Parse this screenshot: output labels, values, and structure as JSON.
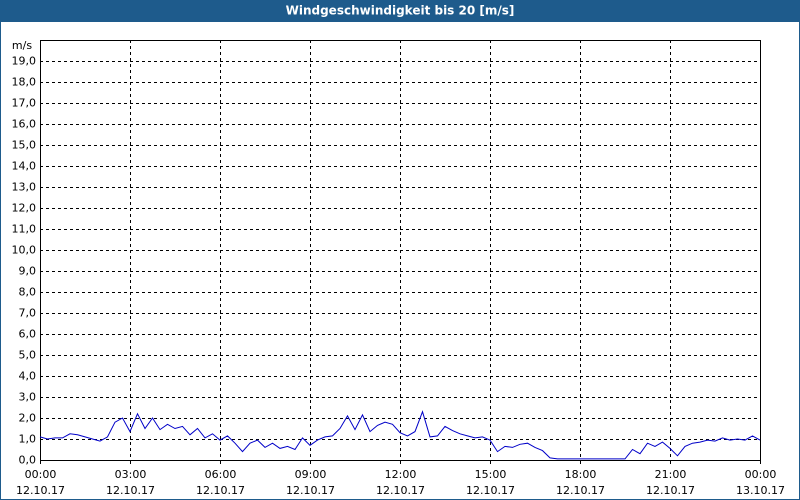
{
  "chart_data": {
    "type": "line",
    "title": "Windgeschwindigkeit bis 20 [m/s]",
    "y_label": "m/s",
    "x": [
      0,
      0.25,
      0.5,
      0.75,
      1,
      1.25,
      1.5,
      1.75,
      2,
      2.25,
      2.5,
      2.75,
      3,
      3.25,
      3.5,
      3.75,
      4,
      4.25,
      4.5,
      4.75,
      5,
      5.25,
      5.5,
      5.75,
      6,
      6.25,
      6.5,
      6.75,
      7,
      7.25,
      7.5,
      7.75,
      8,
      8.25,
      8.5,
      8.75,
      9,
      9.25,
      9.5,
      9.75,
      10,
      10.25,
      10.5,
      10.75,
      11,
      11.25,
      11.5,
      11.75,
      12,
      12.25,
      12.5,
      12.75,
      13,
      13.25,
      13.5,
      13.75,
      14,
      14.25,
      14.5,
      14.75,
      15,
      15.25,
      15.5,
      15.75,
      16,
      16.25,
      16.5,
      16.75,
      17,
      17.25,
      17.5,
      17.75,
      18,
      18.25,
      18.5,
      18.75,
      19,
      19.25,
      19.5,
      19.75,
      20,
      20.25,
      20.5,
      20.75,
      21,
      21.25,
      21.5,
      21.75,
      22,
      22.25,
      22.5,
      22.75,
      23,
      23.25,
      23.5,
      23.75,
      24
    ],
    "series": [
      {
        "name": "Windgeschwindigkeit",
        "color": "#0000c8",
        "values": [
          1.1,
          1.0,
          1.05,
          1.05,
          1.25,
          1.2,
          1.1,
          1.0,
          0.9,
          1.1,
          1.8,
          2.0,
          1.35,
          2.2,
          1.5,
          2.0,
          1.45,
          1.7,
          1.5,
          1.6,
          1.2,
          1.5,
          1.05,
          1.25,
          0.95,
          1.15,
          0.8,
          0.4,
          0.8,
          0.95,
          0.6,
          0.8,
          0.55,
          0.65,
          0.5,
          1.05,
          0.7,
          0.95,
          1.1,
          1.15,
          1.5,
          2.1,
          1.45,
          2.15,
          1.35,
          1.65,
          1.8,
          1.7,
          1.3,
          1.15,
          1.35,
          2.3,
          1.1,
          1.15,
          1.6,
          1.4,
          1.25,
          1.15,
          1.05,
          1.1,
          0.95,
          0.4,
          0.65,
          0.6,
          0.75,
          0.8,
          0.6,
          0.45,
          0.1,
          0.05,
          0.05,
          0.05,
          0.05,
          0.05,
          0.05,
          0.05,
          0.05,
          0.05,
          0.05,
          0.5,
          0.3,
          0.8,
          0.65,
          0.85,
          0.55,
          0.2,
          0.65,
          0.8,
          0.85,
          0.95,
          0.9,
          1.05,
          0.95,
          1.0,
          0.95,
          1.15,
          0.95
        ]
      }
    ],
    "xlim": [
      0,
      24
    ],
    "xticks": [
      {
        "value": 0,
        "label": "00:00"
      },
      {
        "value": 3,
        "label": "03:00"
      },
      {
        "value": 6,
        "label": "06:00"
      },
      {
        "value": 9,
        "label": "09:00"
      },
      {
        "value": 12,
        "label": "12:00"
      },
      {
        "value": 15,
        "label": "15:00"
      },
      {
        "value": 18,
        "label": "18:00"
      },
      {
        "value": 21,
        "label": "21:00"
      },
      {
        "value": 24,
        "label": "00:00"
      }
    ],
    "xtick_dates": [
      "12.10.17",
      "12.10.17",
      "12.10.17",
      "12.10.17",
      "12.10.17",
      "12.10.17",
      "12.10.17",
      "12.10.17",
      "13.10.17"
    ],
    "ylim": [
      0,
      20
    ],
    "yticks": [
      {
        "value": 0,
        "label": "0,0"
      },
      {
        "value": 1,
        "label": "1,0"
      },
      {
        "value": 2,
        "label": "2,0"
      },
      {
        "value": 3,
        "label": "3,0"
      },
      {
        "value": 4,
        "label": "4,0"
      },
      {
        "value": 5,
        "label": "5,0"
      },
      {
        "value": 6,
        "label": "6,0"
      },
      {
        "value": 7,
        "label": "7,0"
      },
      {
        "value": 8,
        "label": "8,0"
      },
      {
        "value": 9,
        "label": "9,0"
      },
      {
        "value": 10,
        "label": "10,0"
      },
      {
        "value": 11,
        "label": "11,0"
      },
      {
        "value": 12,
        "label": "12,0"
      },
      {
        "value": 13,
        "label": "13,0"
      },
      {
        "value": 14,
        "label": "14,0"
      },
      {
        "value": 15,
        "label": "15,0"
      },
      {
        "value": 16,
        "label": "16,0"
      },
      {
        "value": 17,
        "label": "17,0"
      },
      {
        "value": 18,
        "label": "18,0"
      },
      {
        "value": 19,
        "label": "19,0"
      }
    ],
    "grid": true
  }
}
